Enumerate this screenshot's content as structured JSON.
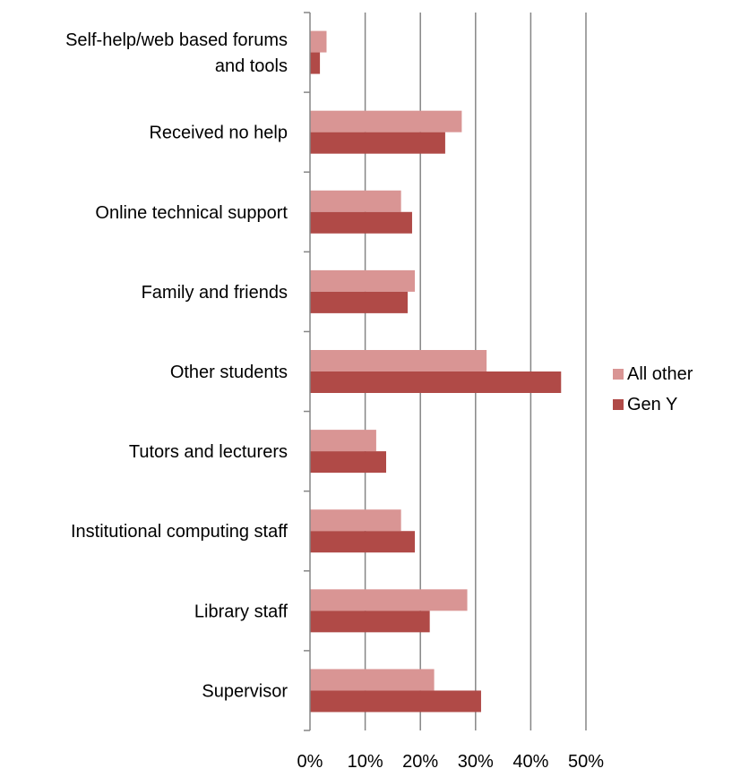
{
  "chart_data": {
    "type": "bar",
    "orientation": "horizontal",
    "categories": [
      [
        "Self-help/web based forums",
        "and tools"
      ],
      [
        "Received no help"
      ],
      [
        "Online technical support"
      ],
      [
        "Family and friends"
      ],
      [
        "Other students"
      ],
      [
        "Tutors and lecturers"
      ],
      [
        "Institutional computing staff"
      ],
      [
        "Library staff"
      ],
      [
        "Supervisor"
      ]
    ],
    "series": [
      {
        "name": "All other",
        "color": "#d99594",
        "values": [
          3,
          27.5,
          16.5,
          19,
          32,
          12,
          16.5,
          28.5,
          22.5
        ]
      },
      {
        "name": "Gen Y",
        "color": "#b04a47",
        "values": [
          1.8,
          24.5,
          18.5,
          17.7,
          45.5,
          13.8,
          19,
          21.7,
          31
        ]
      }
    ],
    "xlim": [
      0,
      50
    ],
    "xticks": [
      "0%",
      "10%",
      "20%",
      "30%",
      "40%",
      "50%"
    ],
    "grid": true,
    "legend": "right",
    "title": "",
    "xlabel": "",
    "ylabel": ""
  }
}
